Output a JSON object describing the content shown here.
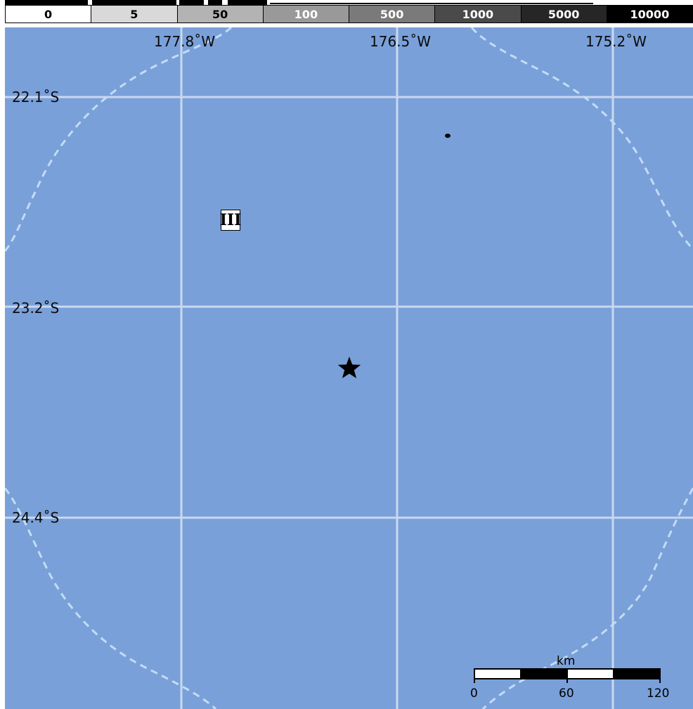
{
  "population_legend": {
    "cells": [
      {
        "label": "0",
        "fill": "#ffffff",
        "text_color": "#000000"
      },
      {
        "label": "5",
        "fill": "#d9d9d9",
        "text_color": "#000000"
      },
      {
        "label": "50",
        "fill": "#b3b3b3",
        "text_color": "#000000"
      },
      {
        "label": "100",
        "fill": "#999999",
        "text_color": "#ffffff"
      },
      {
        "label": "500",
        "fill": "#7a7a7a",
        "text_color": "#ffffff"
      },
      {
        "label": "1000",
        "fill": "#4a4a4a",
        "text_color": "#ffffff"
      },
      {
        "label": "5000",
        "fill": "#262626",
        "text_color": "#ffffff"
      },
      {
        "label": "10000",
        "fill": "#000000",
        "text_color": "#ffffff"
      }
    ]
  },
  "map": {
    "ocean_color": "#7aa0d9",
    "grid_color": "#c9d8ef",
    "contour_color": "#c2dcf5",
    "longitude_labels": [
      "177.8˚W",
      "176.5˚W",
      "175.2˚W"
    ],
    "latitude_labels": [
      "22.1˚S",
      "23.2˚S",
      "24.4˚S"
    ],
    "epicenter_icon": "star-icon",
    "island_icon": "island-icon",
    "intensity_marker": {
      "label": "III",
      "fill": "#ffffff"
    }
  },
  "scale_bar": {
    "unit": "km",
    "ticks": [
      "0",
      "60",
      "120"
    ]
  }
}
